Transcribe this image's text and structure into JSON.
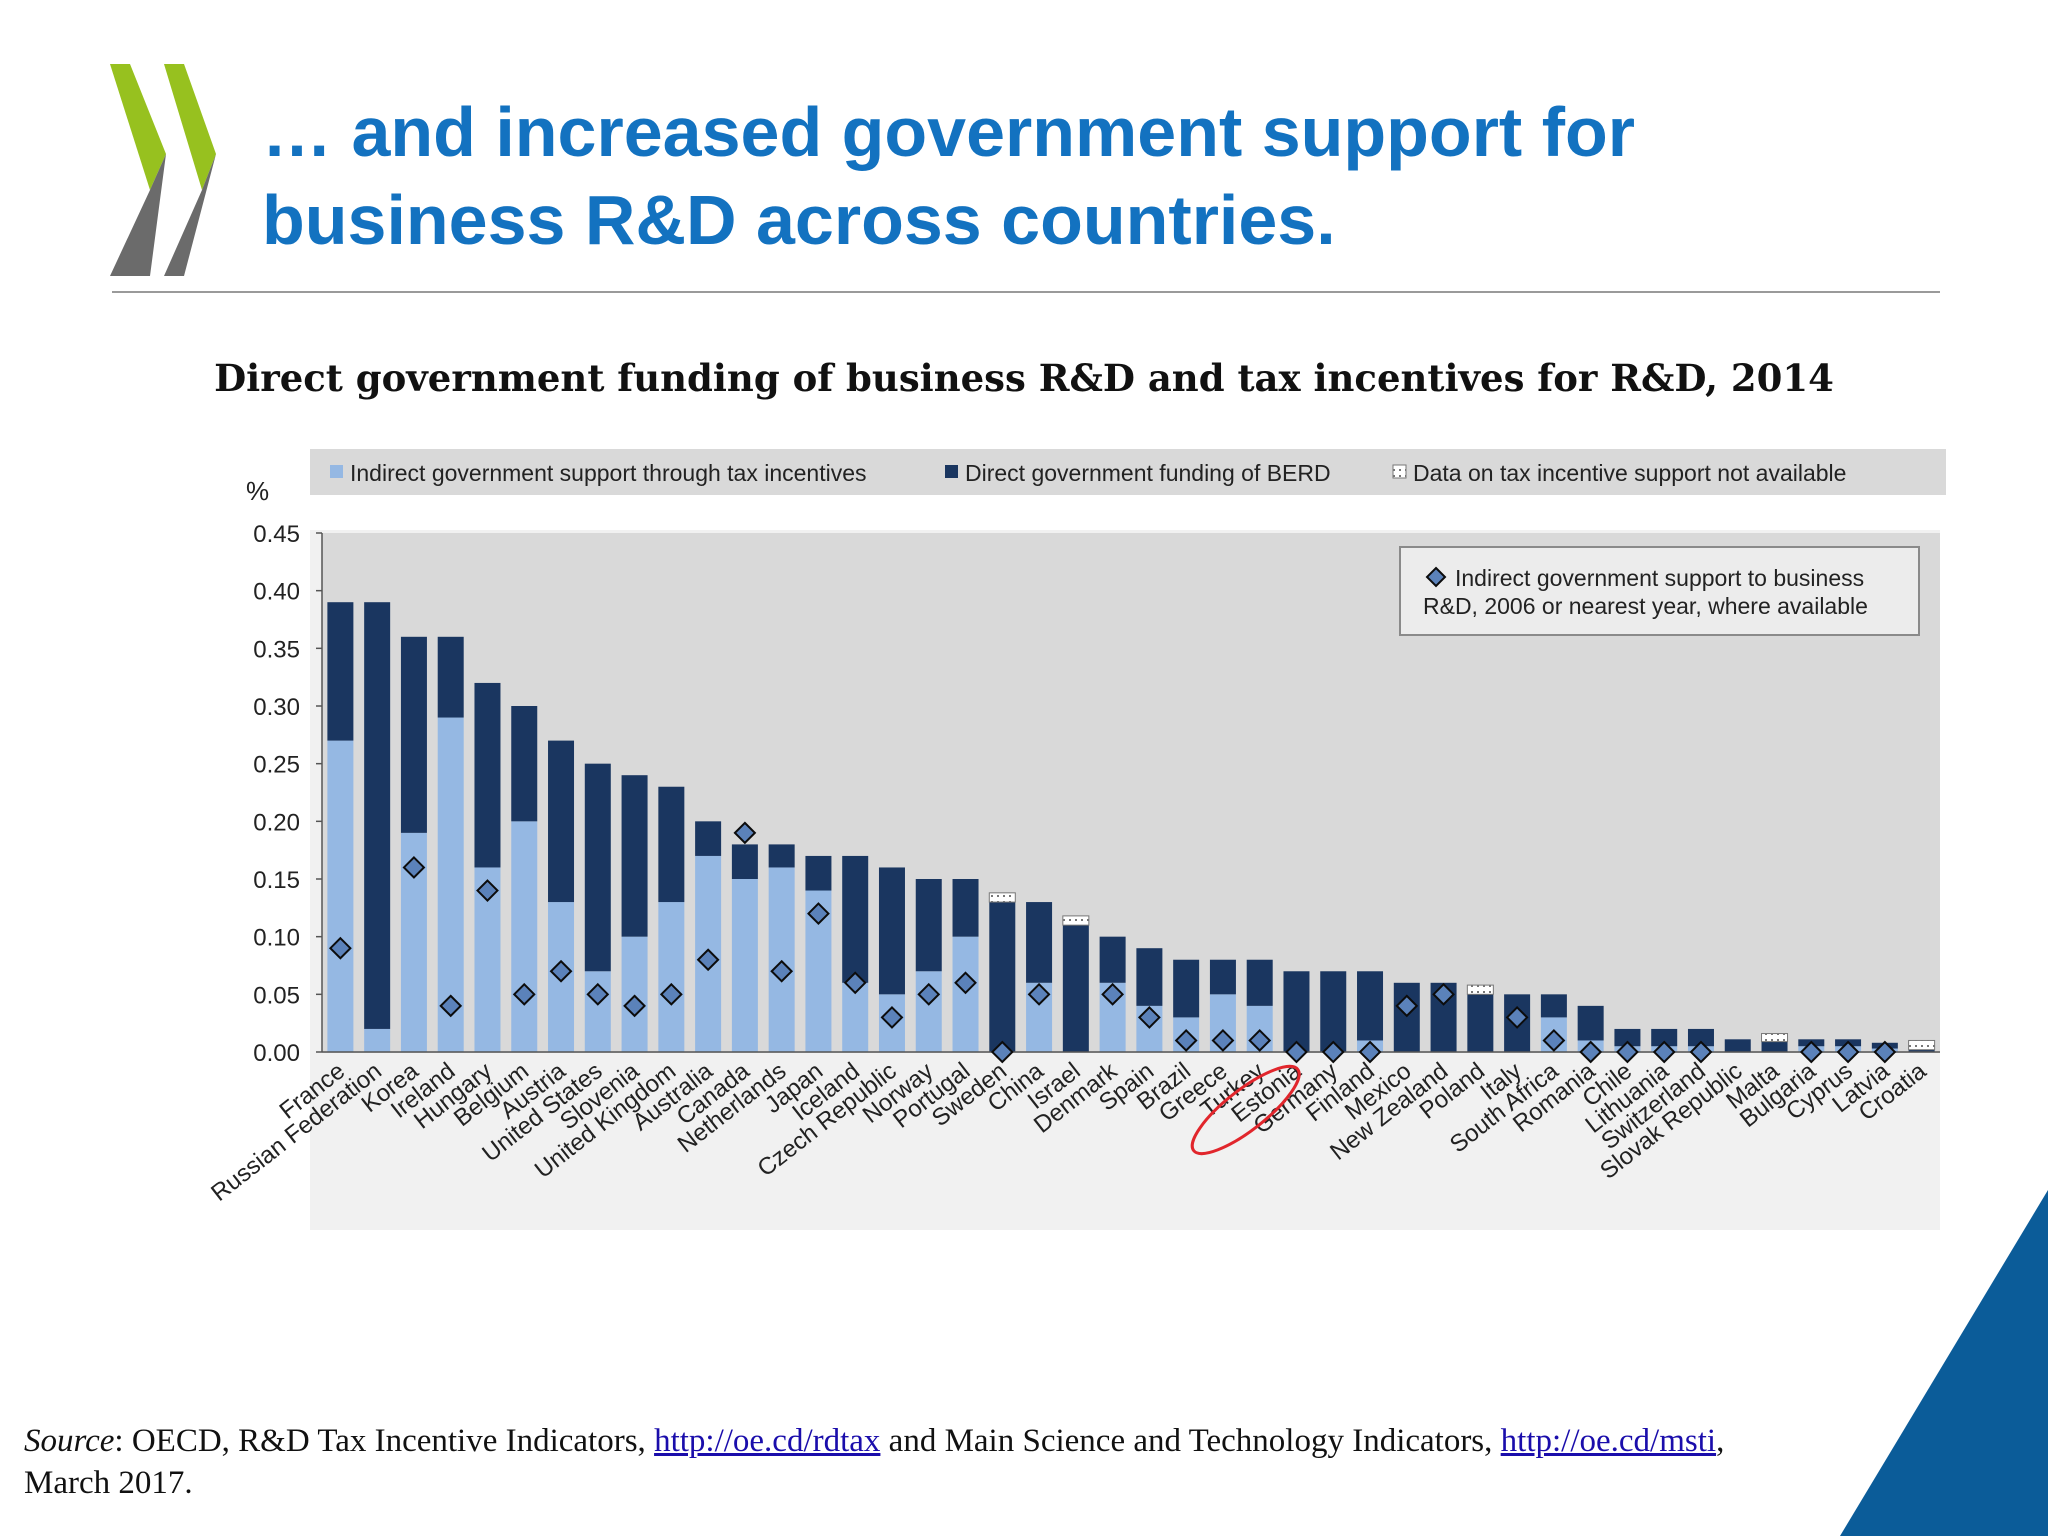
{
  "slide": {
    "title_line1": "… and increased government support for",
    "title_line2": "business R&D across countries.",
    "logo_icon": "oecd-chevrons-icon",
    "accent_colors": [
      "#97c11f",
      "#6b6b6b",
      "#1372c0",
      "#0b5c99"
    ]
  },
  "source": {
    "label": "Source",
    "text1": ": OECD, R&D Tax Incentive Indicators, ",
    "link1": "http://oe.cd/rdtax",
    "text2": " and Main Science and Technology Indicators, ",
    "link2": "http://oe.cd/msti",
    "text3": ", March 2017."
  },
  "chart_data": {
    "type": "bar",
    "stacked": true,
    "title": "Direct government funding of business R&D and tax incentives for R&D, 2014",
    "ylabel": "%",
    "ylim": [
      0,
      0.45
    ],
    "yticks": [
      "0.00",
      "0.05",
      "0.10",
      "0.15",
      "0.20",
      "0.25",
      "0.30",
      "0.35",
      "0.40",
      "0.45"
    ],
    "grid": false,
    "legend_position": "top",
    "legend": [
      {
        "label": "Indirect government support through tax incentives",
        "color": "#95b8e3"
      },
      {
        "label": "Direct government funding of BERD",
        "color": "#1a3660"
      },
      {
        "label": "Data on tax incentive support not available",
        "color": "#bdbdbd"
      }
    ],
    "marker_legend": {
      "line1": "Indirect government support to business",
      "line2": "R&D, 2006 or nearest year, where available"
    },
    "highlighted_category": "Turkey",
    "categories": [
      "France",
      "Russian Federation",
      "Korea",
      "Ireland",
      "Hungary",
      "Belgium",
      "Austria",
      "United States",
      "Slovenia",
      "United Kingdom",
      "Australia",
      "Canada",
      "Netherlands",
      "Japan",
      "Iceland",
      "Czech Republic",
      "Norway",
      "Portugal",
      "Sweden",
      "China",
      "Israel",
      "Denmark",
      "Spain",
      "Brazil",
      "Greece",
      "Turkey",
      "Estonia",
      "Germany",
      "Finland",
      "Mexico",
      "New Zealand",
      "Poland",
      "Italy",
      "South Africa",
      "Romania",
      "Chile",
      "Lithuania",
      "Switzerland",
      "Slovak Republic",
      "Malta",
      "Bulgaria",
      "Cyprus",
      "Latvia",
      "Croatia"
    ],
    "series": [
      {
        "name": "Indirect government support through tax incentives",
        "values": [
          0.27,
          0.02,
          0.19,
          0.29,
          0.16,
          0.2,
          0.13,
          0.07,
          0.1,
          0.13,
          0.17,
          0.15,
          0.16,
          0.14,
          0.06,
          0.05,
          0.07,
          0.1,
          0,
          0.06,
          0,
          0.06,
          0.04,
          0.03,
          0.05,
          0.04,
          0,
          0,
          0.01,
          0,
          0,
          0,
          0,
          0.03,
          0.01,
          0.005,
          0.005,
          0.005,
          0,
          0,
          0.005,
          0.005,
          0.003,
          0
        ]
      },
      {
        "name": "Direct government funding of BERD",
        "values": [
          0.12,
          0.37,
          0.17,
          0.07,
          0.16,
          0.1,
          0.14,
          0.18,
          0.14,
          0.1,
          0.03,
          0.03,
          0.02,
          0.03,
          0.11,
          0.11,
          0.08,
          0.05,
          0.13,
          0.07,
          0.11,
          0.04,
          0.05,
          0.05,
          0.03,
          0.04,
          0.07,
          0.07,
          0.06,
          0.06,
          0.06,
          0.05,
          0.05,
          0.02,
          0.03,
          0.015,
          0.015,
          0.015,
          0.011,
          0.009,
          0.006,
          0.006,
          0.005,
          0.002
        ]
      },
      {
        "name": "Data on tax incentive support not available",
        "values": [
          0,
          0,
          0,
          0,
          0,
          0,
          0,
          0,
          0,
          0,
          0,
          0,
          0,
          0,
          0,
          0,
          0,
          0,
          0.008,
          0,
          0.008,
          0,
          0,
          0,
          0,
          0,
          0,
          0,
          0,
          0,
          0,
          0.008,
          0,
          0,
          0,
          0,
          0,
          0,
          0,
          0.007,
          0,
          0,
          0,
          0.008
        ]
      }
    ],
    "markers": {
      "name": "Indirect government support to business R&D, 2006 or nearest year, where available",
      "values": [
        0.09,
        null,
        0.16,
        0.04,
        0.14,
        0.05,
        0.07,
        0.05,
        0.04,
        0.05,
        0.08,
        0.19,
        0.07,
        0.12,
        0.06,
        0.03,
        0.05,
        0.06,
        0,
        0.05,
        null,
        0.05,
        0.03,
        0.01,
        0.01,
        0.01,
        0,
        0,
        0,
        0.04,
        0.05,
        null,
        0.03,
        0.01,
        0,
        0,
        0,
        0,
        null,
        null,
        0,
        0,
        0,
        null
      ]
    }
  }
}
